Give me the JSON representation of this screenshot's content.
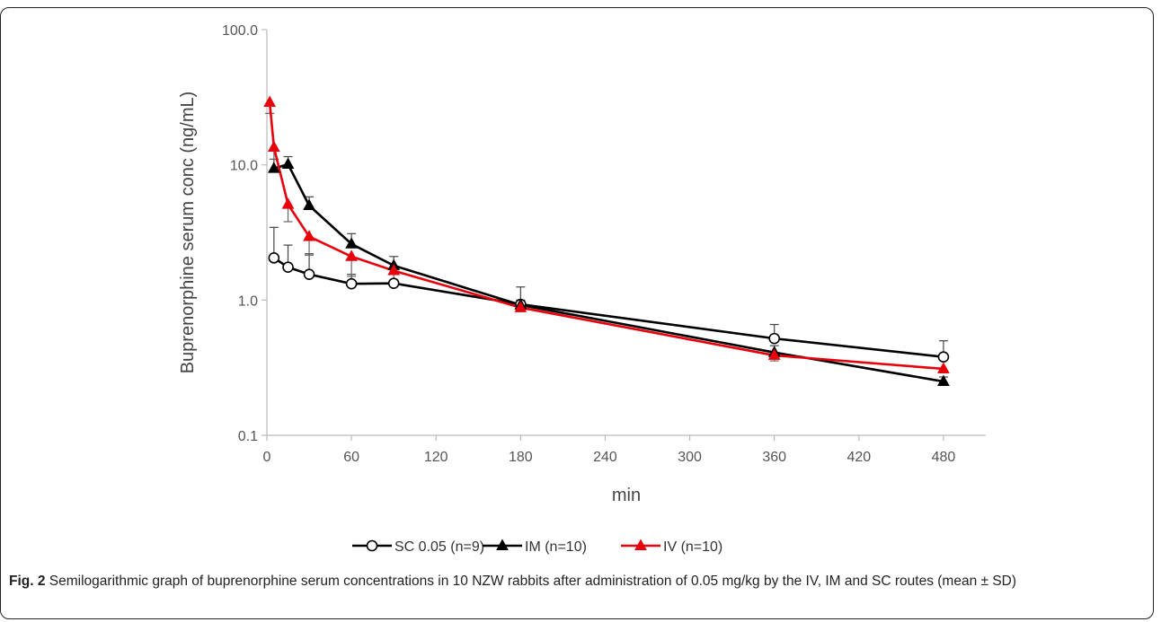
{
  "chart_data": {
    "type": "line",
    "xlabel": "min",
    "ylabel": "Buprenorphine serum conc (ng/mL)",
    "x_ticks": [
      0,
      60,
      120,
      180,
      240,
      300,
      360,
      420,
      480
    ],
    "y_ticks": [
      "0.1",
      "1.0",
      "10.0",
      "100.0"
    ],
    "y_scale": "log",
    "xlim": [
      0,
      510
    ],
    "ylim": [
      0.1,
      100
    ],
    "grid": false,
    "legend_position": "bottom",
    "series": [
      {
        "name": "SC 0.05 (n=9)",
        "color": "#000000",
        "marker": "circle-open",
        "x": [
          5,
          15,
          30,
          60,
          90,
          180,
          360,
          480
        ],
        "y": [
          2.05,
          1.75,
          1.55,
          1.32,
          1.33,
          0.93,
          0.52,
          0.38
        ],
        "sd_upper": [
          3.45,
          2.55,
          2.2,
          1.55,
          1.4,
          1.25,
          0.66,
          0.5
        ]
      },
      {
        "name": "IM (n=10)",
        "color": "#000000",
        "marker": "triangle",
        "x": [
          5,
          15,
          30,
          60,
          90,
          180,
          360,
          480
        ],
        "y": [
          9.4,
          10.1,
          5.0,
          2.6,
          1.8,
          0.92,
          0.41,
          0.25
        ],
        "sd_upper": [
          11.0,
          11.5,
          5.8,
          3.1,
          2.1,
          1.0,
          0.46,
          0.27
        ]
      },
      {
        "name": "IV (n=10)",
        "color": "#e8000b",
        "marker": "triangle",
        "x": [
          2,
          5,
          15,
          30,
          60,
          90,
          180,
          360,
          480
        ],
        "y": [
          29.0,
          13.5,
          5.1,
          2.95,
          2.1,
          1.65,
          0.88,
          0.39,
          0.31
        ],
        "sd_lower": [
          24.0,
          11.0,
          3.8,
          2.15,
          1.5,
          1.4,
          0.82,
          0.355,
          0.29
        ]
      }
    ]
  },
  "caption": {
    "label": "Fig. 2",
    "text": " Semilogarithmic graph of buprenorphine serum concentrations in 10 NZW rabbits after administration of 0.05 mg/kg by the IV, IM and SC routes (mean ± SD)"
  }
}
